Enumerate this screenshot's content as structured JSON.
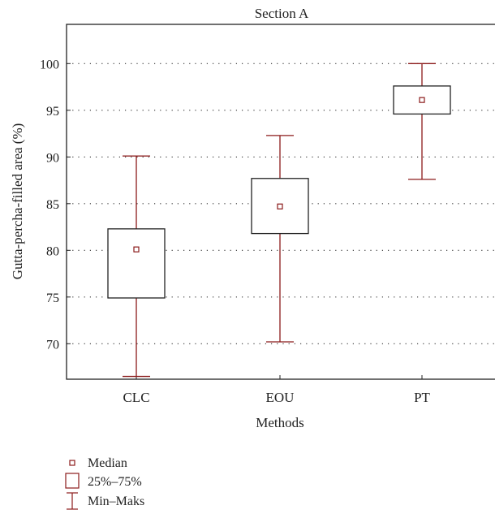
{
  "chart_data": {
    "type": "boxplot",
    "title": "Section A",
    "xlabel": "Methods",
    "ylabel": "Gutta-percha-filled area (%)",
    "categories": [
      "CLC",
      "EOU",
      "PT"
    ],
    "ylim": [
      66.2,
      104.2
    ],
    "yticks": [
      "70",
      "75",
      "80",
      "85",
      "90",
      "95",
      "100"
    ],
    "grid": true,
    "boxes": [
      {
        "category": "CLC",
        "min": 66.5,
        "q1": 74.9,
        "median": 80.1,
        "q3": 82.3,
        "max": 90.1
      },
      {
        "category": "EOU",
        "min": 70.2,
        "q1": 81.8,
        "median": 84.7,
        "q3": 87.7,
        "max": 92.3
      },
      {
        "category": "PT",
        "min": 87.6,
        "q1": 94.6,
        "median": 96.1,
        "q3": 97.6,
        "max": 100.0
      }
    ],
    "legend": {
      "placement": "bottom-left",
      "median_label": "Median",
      "box_label": "25%–75%",
      "whisker_label": "Min–Maks"
    },
    "colors": {
      "marks": "#8b1a1a",
      "box_fill": "#ffffff",
      "axes": "#222222",
      "grid": "#333333"
    }
  }
}
